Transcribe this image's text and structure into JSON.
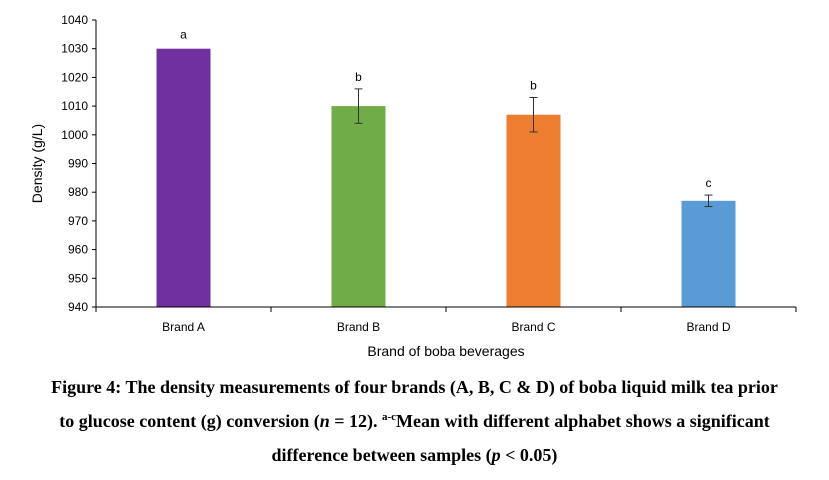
{
  "chart_data": {
    "type": "bar",
    "categories": [
      "Brand A",
      "Brand B",
      "Brand C",
      "Brand D"
    ],
    "values": [
      1030,
      1010,
      1007,
      977
    ],
    "errors": [
      0,
      6,
      6,
      2
    ],
    "significance_letters": [
      "a",
      "b",
      "b",
      "c"
    ],
    "colors": [
      "#7030A0",
      "#70AD47",
      "#ED7D31",
      "#5B9BD5"
    ],
    "xlabel": "Brand of boba beverages",
    "ylabel": "Density (g/L)",
    "ylim": [
      940,
      1040
    ],
    "yticks": [
      940,
      950,
      960,
      970,
      980,
      990,
      1000,
      1010,
      1020,
      1030,
      1040
    ],
    "grid": false,
    "legend": "none"
  },
  "caption": {
    "line1": "Figure 4: The density measurements of four brands (A, B, C & D) of boba liquid milk tea prior",
    "line2_a": "to glucose content (g) conversion (",
    "line2_n": "n",
    "line2_b": " = 12). ",
    "line2_sup": "a-c",
    "line2_c": "Mean with different alphabet shows a significant",
    "line3_a": "difference between samples (",
    "line3_p": "p",
    "line3_b": " < 0.05)"
  }
}
